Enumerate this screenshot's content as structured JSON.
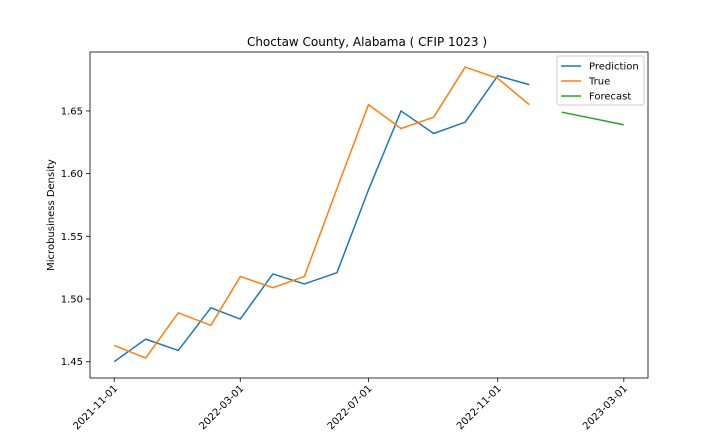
{
  "chart_data": {
    "type": "line",
    "title": "Choctaw County, Alabama ( CFIP 1023 )",
    "xlabel": "",
    "ylabel": "Microbusiness Density",
    "x_ticks": [
      "2021-11-01",
      "2022-03-01",
      "2022-07-01",
      "2022-11-01",
      "2023-03-01"
    ],
    "y_ticks": [
      "1.45",
      "1.50",
      "1.55",
      "1.60",
      "1.65"
    ],
    "xlim": [
      "2021-10-09",
      "2023-03-24"
    ],
    "ylim": [
      1.437,
      1.697
    ],
    "legend_position": "top-right",
    "grid": false,
    "series": [
      {
        "name": "Prediction",
        "color": "#1f77b4",
        "points": [
          [
            "2021-11-01",
            1.45
          ],
          [
            "2021-12-01",
            1.468
          ],
          [
            "2022-01-01",
            1.459
          ],
          [
            "2022-02-01",
            1.493
          ],
          [
            "2022-03-01",
            1.484
          ],
          [
            "2022-04-01",
            1.52
          ],
          [
            "2022-05-01",
            1.512
          ],
          [
            "2022-06-01",
            1.521
          ],
          [
            "2022-07-01",
            1.587
          ],
          [
            "2022-08-01",
            1.65
          ],
          [
            "2022-09-01",
            1.632
          ],
          [
            "2022-10-01",
            1.641
          ],
          [
            "2022-11-01",
            1.678
          ],
          [
            "2022-12-01",
            1.671
          ]
        ]
      },
      {
        "name": "True",
        "color": "#ff7f0e",
        "points": [
          [
            "2021-11-01",
            1.463
          ],
          [
            "2021-12-01",
            1.453
          ],
          [
            "2022-01-01",
            1.489
          ],
          [
            "2022-02-01",
            1.479
          ],
          [
            "2022-03-01",
            1.518
          ],
          [
            "2022-04-01",
            1.509
          ],
          [
            "2022-05-01",
            1.518
          ],
          [
            "2022-06-01",
            1.588
          ],
          [
            "2022-07-01",
            1.655
          ],
          [
            "2022-08-01",
            1.636
          ],
          [
            "2022-09-01",
            1.645
          ],
          [
            "2022-10-01",
            1.685
          ],
          [
            "2022-11-01",
            1.676
          ],
          [
            "2022-12-01",
            1.655
          ]
        ]
      },
      {
        "name": "Forecast",
        "color": "#2ca02c",
        "points": [
          [
            "2023-01-01",
            1.649
          ],
          [
            "2023-03-01",
            1.639
          ]
        ]
      }
    ]
  }
}
